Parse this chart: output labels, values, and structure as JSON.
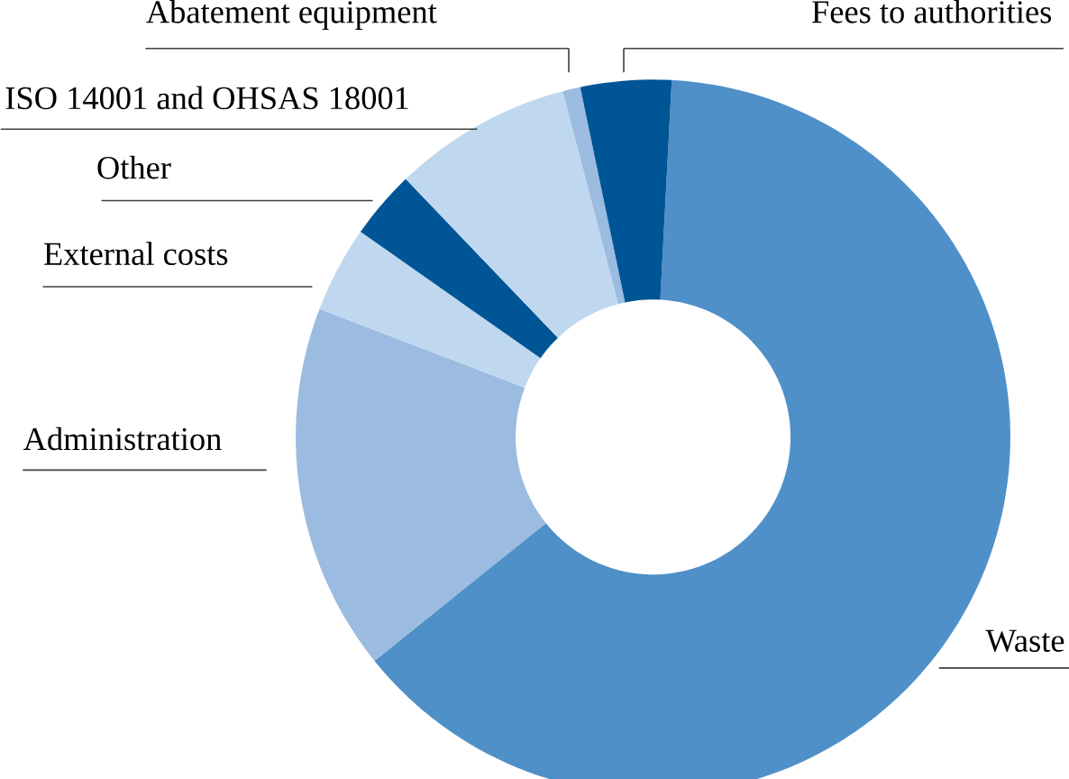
{
  "chart_data": {
    "type": "donut",
    "categories": [
      "Waste",
      "Administration",
      "External costs",
      "Other",
      "ISO 14001 and OHSAS 18001",
      "Abatement equipment",
      "Fees to authorities"
    ],
    "values": [
      63.4,
      16.6,
      3.9,
      3.1,
      8.1,
      0.8,
      4.1
    ],
    "colors": [
      "#4f90c8",
      "#9bbbe0",
      "#c0d8ef",
      "#005596",
      "#c0d8ef",
      "#9bbbe0",
      "#005596"
    ]
  }
}
